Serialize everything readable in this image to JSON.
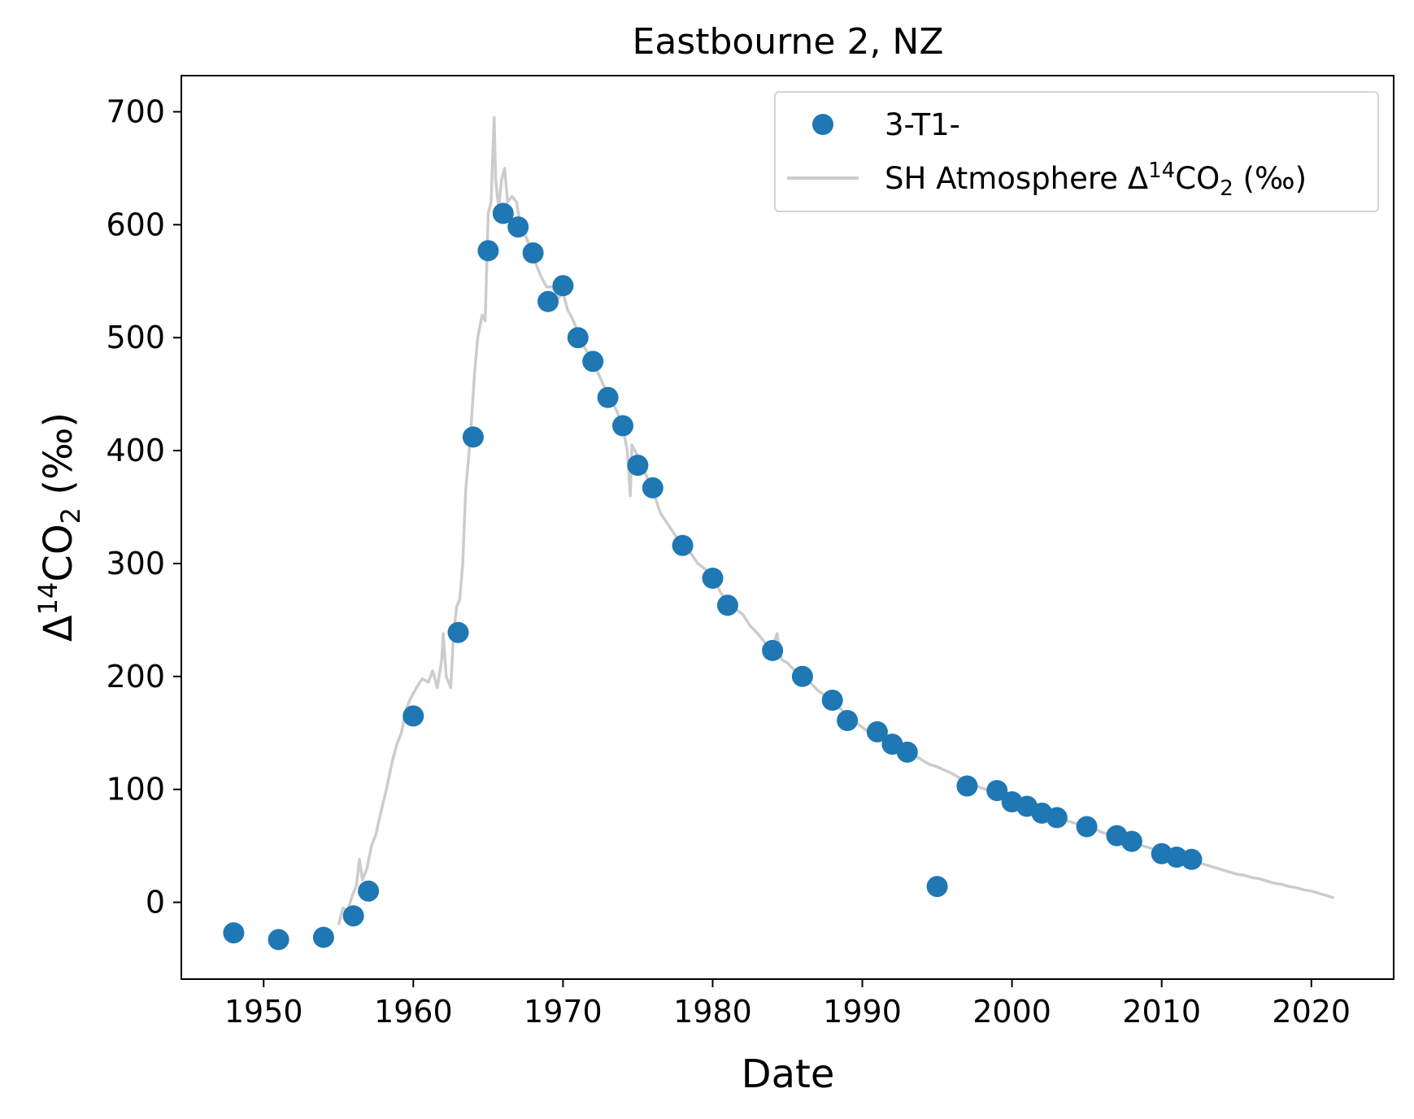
{
  "chart_data": {
    "type": "scatter",
    "title": "Eastbourne 2, NZ",
    "xlabel": "Date",
    "ylabel": {
      "base": "Δ",
      "sup": "14",
      "mid": "CO",
      "sub": "2",
      "tail": " (‰)"
    },
    "xlim": [
      1944.5,
      2025.5
    ],
    "ylim": [
      -68,
      732
    ],
    "xticks": [
      1950,
      1960,
      1970,
      1980,
      1990,
      2000,
      2010,
      2020
    ],
    "yticks": [
      0,
      100,
      200,
      300,
      400,
      500,
      600,
      700
    ],
    "grid": false,
    "legend_position": "top-right",
    "series": [
      {
        "name": "3-T1-",
        "kind": "scatter",
        "color": "#1f77b4",
        "points": [
          [
            1948,
            -27
          ],
          [
            1951,
            -33
          ],
          [
            1954,
            -31
          ],
          [
            1956,
            -12
          ],
          [
            1957,
            10
          ],
          [
            1960,
            165
          ],
          [
            1963,
            239
          ],
          [
            1964,
            412
          ],
          [
            1965,
            577
          ],
          [
            1966,
            610
          ],
          [
            1967,
            598
          ],
          [
            1968,
            575
          ],
          [
            1969,
            532
          ],
          [
            1970,
            546
          ],
          [
            1971,
            500
          ],
          [
            1972,
            479
          ],
          [
            1973,
            447
          ],
          [
            1974,
            422
          ],
          [
            1975,
            387
          ],
          [
            1976,
            367
          ],
          [
            1978,
            316
          ],
          [
            1980,
            287
          ],
          [
            1981,
            263
          ],
          [
            1984,
            223
          ],
          [
            1986,
            200
          ],
          [
            1988,
            179
          ],
          [
            1989,
            161
          ],
          [
            1991,
            151
          ],
          [
            1992,
            140
          ],
          [
            1993,
            133
          ],
          [
            1995,
            14
          ],
          [
            1997,
            103
          ],
          [
            1999,
            99
          ],
          [
            2000,
            89
          ],
          [
            2001,
            85
          ],
          [
            2002,
            79
          ],
          [
            2003,
            75
          ],
          [
            2005,
            67
          ],
          [
            2007,
            59
          ],
          [
            2008,
            54
          ],
          [
            2010,
            43
          ],
          [
            2011,
            40
          ],
          [
            2012,
            38
          ]
        ]
      },
      {
        "name": {
          "base": "SH Atmosphere Δ",
          "sup": "14",
          "mid": "CO",
          "sub": "2",
          "tail": " (‰)"
        },
        "kind": "line",
        "color": "#cccccc",
        "points": [
          [
            1955.0,
            -20
          ],
          [
            1955.3,
            -5
          ],
          [
            1955.6,
            -8
          ],
          [
            1955.9,
            5
          ],
          [
            1956.2,
            15
          ],
          [
            1956.4,
            38
          ],
          [
            1956.6,
            20
          ],
          [
            1956.9,
            30
          ],
          [
            1957.2,
            50
          ],
          [
            1957.5,
            60
          ],
          [
            1957.8,
            78
          ],
          [
            1958.2,
            100
          ],
          [
            1958.6,
            125
          ],
          [
            1958.9,
            140
          ],
          [
            1959.2,
            150
          ],
          [
            1959.5,
            170
          ],
          [
            1959.8,
            180
          ],
          [
            1960.0,
            185
          ],
          [
            1960.3,
            192
          ],
          [
            1960.6,
            198
          ],
          [
            1961.0,
            195
          ],
          [
            1961.3,
            205
          ],
          [
            1961.6,
            190
          ],
          [
            1961.9,
            215
          ],
          [
            1962.0,
            238
          ],
          [
            1962.2,
            200
          ],
          [
            1962.5,
            190
          ],
          [
            1962.7,
            240
          ],
          [
            1962.9,
            262
          ],
          [
            1963.1,
            268
          ],
          [
            1963.3,
            300
          ],
          [
            1963.5,
            365
          ],
          [
            1963.6,
            380
          ],
          [
            1963.8,
            410
          ],
          [
            1964.1,
            470
          ],
          [
            1964.3,
            500
          ],
          [
            1964.6,
            520
          ],
          [
            1964.8,
            515
          ],
          [
            1965.0,
            610
          ],
          [
            1965.2,
            620
          ],
          [
            1965.4,
            695
          ],
          [
            1965.5,
            640
          ],
          [
            1965.7,
            615
          ],
          [
            1965.9,
            640
          ],
          [
            1966.1,
            650
          ],
          [
            1966.3,
            620
          ],
          [
            1966.6,
            625
          ],
          [
            1966.9,
            620
          ],
          [
            1967.2,
            595
          ],
          [
            1967.5,
            590
          ],
          [
            1967.8,
            580
          ],
          [
            1968.2,
            565
          ],
          [
            1968.5,
            555
          ],
          [
            1968.9,
            545
          ],
          [
            1969.3,
            545
          ],
          [
            1969.7,
            535
          ],
          [
            1970.0,
            540
          ],
          [
            1970.3,
            525
          ],
          [
            1970.7,
            515
          ],
          [
            1971.1,
            500
          ],
          [
            1971.5,
            490
          ],
          [
            1971.9,
            480
          ],
          [
            1972.3,
            470
          ],
          [
            1972.7,
            458
          ],
          [
            1973.2,
            445
          ],
          [
            1973.6,
            435
          ],
          [
            1974.0,
            420
          ],
          [
            1974.3,
            400
          ],
          [
            1974.5,
            360
          ],
          [
            1974.6,
            405
          ],
          [
            1975.0,
            395
          ],
          [
            1975.5,
            380
          ],
          [
            1976.0,
            365
          ],
          [
            1976.5,
            345
          ],
          [
            1977.0,
            335
          ],
          [
            1977.5,
            325
          ],
          [
            1978.0,
            318
          ],
          [
            1978.5,
            310
          ],
          [
            1979.0,
            300
          ],
          [
            1979.5,
            295
          ],
          [
            1980.0,
            290
          ],
          [
            1980.5,
            275
          ],
          [
            1981.0,
            265
          ],
          [
            1981.5,
            260
          ],
          [
            1982.0,
            255
          ],
          [
            1982.5,
            245
          ],
          [
            1983.0,
            238
          ],
          [
            1983.5,
            230
          ],
          [
            1984.0,
            225
          ],
          [
            1984.3,
            238
          ],
          [
            1984.6,
            215
          ],
          [
            1985.0,
            212
          ],
          [
            1985.5,
            205
          ],
          [
            1986.0,
            200
          ],
          [
            1986.5,
            195
          ],
          [
            1987.0,
            188
          ],
          [
            1987.5,
            183
          ],
          [
            1988.0,
            178
          ],
          [
            1988.5,
            172
          ],
          [
            1989.0,
            165
          ],
          [
            1989.5,
            160
          ],
          [
            1990.0,
            155
          ],
          [
            1990.5,
            150
          ],
          [
            1991.0,
            150
          ],
          [
            1991.5,
            145
          ],
          [
            1992.0,
            140
          ],
          [
            1992.5,
            137
          ],
          [
            1993.0,
            133
          ],
          [
            1993.5,
            130
          ],
          [
            1994.0,
            126
          ],
          [
            1994.5,
            122
          ],
          [
            1995.0,
            120
          ],
          [
            1995.5,
            117
          ],
          [
            1996.0,
            114
          ],
          [
            1996.5,
            110
          ],
          [
            1997.0,
            106
          ],
          [
            1997.5,
            104
          ],
          [
            1998.0,
            101
          ],
          [
            1998.5,
            99
          ],
          [
            1999.0,
            97
          ],
          [
            1999.5,
            94
          ],
          [
            2000.0,
            91
          ],
          [
            2000.5,
            88
          ],
          [
            2001.0,
            86
          ],
          [
            2001.5,
            83
          ],
          [
            2002.0,
            80
          ],
          [
            2002.5,
            78
          ],
          [
            2003.0,
            75
          ],
          [
            2003.5,
            73
          ],
          [
            2004.0,
            71
          ],
          [
            2004.5,
            69
          ],
          [
            2005.0,
            67
          ],
          [
            2005.5,
            65
          ],
          [
            2006.0,
            62
          ],
          [
            2006.5,
            60
          ],
          [
            2007.0,
            58
          ],
          [
            2007.5,
            56
          ],
          [
            2008.0,
            54
          ],
          [
            2008.5,
            51
          ],
          [
            2009.0,
            49
          ],
          [
            2009.5,
            47
          ],
          [
            2010.0,
            45
          ],
          [
            2010.5,
            43
          ],
          [
            2011.0,
            41
          ],
          [
            2011.5,
            39
          ],
          [
            2012.0,
            37
          ],
          [
            2012.5,
            35
          ],
          [
            2013.0,
            33
          ],
          [
            2013.5,
            31
          ],
          [
            2014.0,
            29
          ],
          [
            2014.5,
            27
          ],
          [
            2015.0,
            25
          ],
          [
            2015.5,
            24
          ],
          [
            2016.0,
            22
          ],
          [
            2016.5,
            21
          ],
          [
            2017.0,
            19
          ],
          [
            2017.5,
            17
          ],
          [
            2018.0,
            16
          ],
          [
            2018.5,
            14
          ],
          [
            2019.0,
            13
          ],
          [
            2019.5,
            11
          ],
          [
            2020.0,
            10
          ],
          [
            2020.5,
            8
          ],
          [
            2021.0,
            6
          ],
          [
            2021.5,
            4
          ]
        ]
      }
    ]
  }
}
